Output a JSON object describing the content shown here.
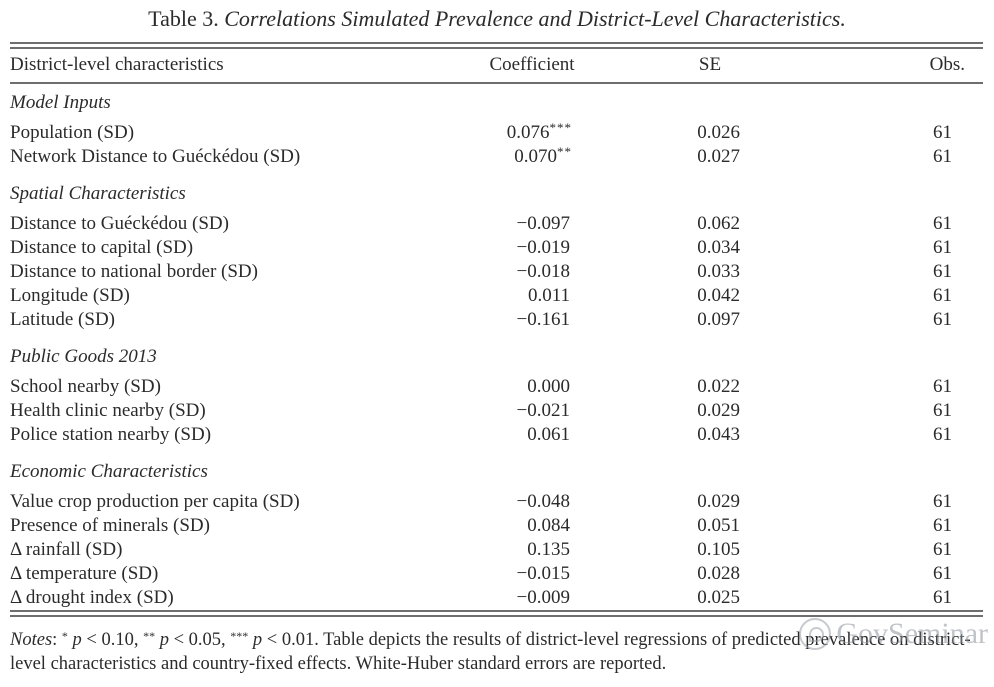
{
  "title": {
    "label": "Table 3.",
    "caption": "Correlations Simulated Prevalence and District-Level Characteristics."
  },
  "table": {
    "headers": [
      "District-level characteristics",
      "Coefficient",
      "SE",
      "Obs."
    ],
    "sections": [
      {
        "title": "Model Inputs",
        "rows": [
          {
            "label": "Population (SD)",
            "coef": "0.076",
            "stars": "***",
            "se": "0.026",
            "obs": "61"
          },
          {
            "label": "Network Distance to Guéckédou (SD)",
            "coef": "0.070",
            "stars": "**",
            "se": "0.027",
            "obs": "61"
          }
        ]
      },
      {
        "title": "Spatial Characteristics",
        "rows": [
          {
            "label": "Distance to Guéckédou (SD)",
            "coef": "−0.097",
            "stars": "",
            "se": "0.062",
            "obs": "61"
          },
          {
            "label": "Distance to capital (SD)",
            "coef": "−0.019",
            "stars": "",
            "se": "0.034",
            "obs": "61"
          },
          {
            "label": "Distance to national border (SD)",
            "coef": "−0.018",
            "stars": "",
            "se": "0.033",
            "obs": "61"
          },
          {
            "label": "Longitude (SD)",
            "coef": "0.011",
            "stars": "",
            "se": "0.042",
            "obs": "61"
          },
          {
            "label": "Latitude (SD)",
            "coef": "−0.161",
            "stars": "",
            "se": "0.097",
            "obs": "61"
          }
        ]
      },
      {
        "title": "Public Goods 2013",
        "rows": [
          {
            "label": "School nearby (SD)",
            "coef": "0.000",
            "stars": "",
            "se": "0.022",
            "obs": "61"
          },
          {
            "label": "Health clinic nearby (SD)",
            "coef": "−0.021",
            "stars": "",
            "se": "0.029",
            "obs": "61"
          },
          {
            "label": "Police station nearby (SD)",
            "coef": "0.061",
            "stars": "",
            "se": "0.043",
            "obs": "61"
          }
        ]
      },
      {
        "title": "Economic Characteristics",
        "rows": [
          {
            "label": "Value crop production per capita (SD)",
            "coef": "−0.048",
            "stars": "",
            "se": "0.029",
            "obs": "61"
          },
          {
            "label": "Presence of minerals (SD)",
            "coef": "0.084",
            "stars": "",
            "se": "0.051",
            "obs": "61"
          },
          {
            "label": "Δ rainfall (SD)",
            "coef": "0.135",
            "stars": "",
            "se": "0.105",
            "obs": "61"
          },
          {
            "label": "Δ temperature (SD)",
            "coef": "−0.015",
            "stars": "",
            "se": "0.028",
            "obs": "61"
          },
          {
            "label": "Δ drought index (SD)",
            "coef": "−0.009",
            "stars": "",
            "se": "0.025",
            "obs": "61"
          }
        ]
      }
    ]
  },
  "notes": {
    "parts": [
      {
        "t": "Notes",
        "s": "italic"
      },
      {
        "t": ": ",
        "s": "normal"
      },
      {
        "t": "*",
        "s": "sup"
      },
      {
        "t": " ",
        "s": "normal"
      },
      {
        "t": "p",
        "s": "italic"
      },
      {
        "t": " < 0.10, ",
        "s": "normal"
      },
      {
        "t": "**",
        "s": "sup"
      },
      {
        "t": " ",
        "s": "normal"
      },
      {
        "t": "p",
        "s": "italic"
      },
      {
        "t": " < 0.05, ",
        "s": "normal"
      },
      {
        "t": "***",
        "s": "sup"
      },
      {
        "t": " ",
        "s": "normal"
      },
      {
        "t": "p",
        "s": "italic"
      },
      {
        "t": " < 0.01. ",
        "s": "normal"
      },
      {
        "t": "Table depicts the results of district-level regressions of predicted prevalence on district-level characteristics and country-fixed effects. White-Huber standard errors are reported.",
        "s": "normal"
      }
    ]
  },
  "watermark": {
    "text": "GovSeminar"
  },
  "colors": {
    "text": "#2b2b2b",
    "rule": "#6e6e6e",
    "watermark": "#8d939c"
  }
}
